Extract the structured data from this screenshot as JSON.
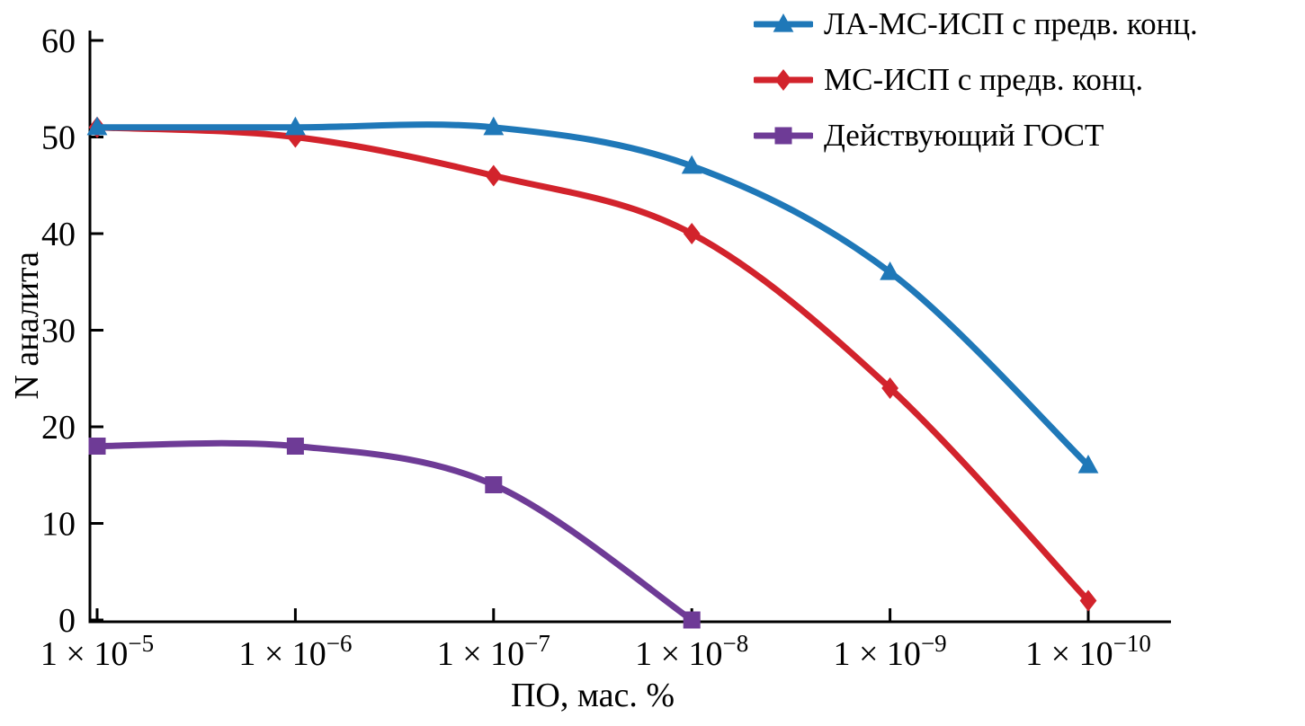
{
  "chart_data": {
    "type": "line",
    "title": "",
    "xlabel": "ПО, мас. %",
    "ylabel": "N аналита",
    "ylim": [
      0,
      60
    ],
    "yticks": [
      0,
      10,
      20,
      30,
      40,
      50,
      60
    ],
    "grid": false,
    "legend_position": "top-right",
    "axis_color": "#000000",
    "categories": [
      {
        "base": "1 × 10",
        "exp": "−5"
      },
      {
        "base": "1 × 10",
        "exp": "−6"
      },
      {
        "base": "1 × 10",
        "exp": "−7"
      },
      {
        "base": "1 × 10",
        "exp": "−8"
      },
      {
        "base": "1 × 10",
        "exp": "−9"
      },
      {
        "base": "1 × 10",
        "exp": "−10"
      }
    ],
    "series": [
      {
        "name": "ЛА-МС-ИСП с предв. конц.",
        "marker": "triangle",
        "color": "#1f78b8",
        "values": [
          51,
          51,
          51,
          47,
          36,
          16
        ]
      },
      {
        "name": "МС-ИСП с предв. конц.",
        "marker": "diamond",
        "color": "#d2232c",
        "values": [
          51,
          50,
          46,
          40,
          24,
          2
        ]
      },
      {
        "name": "Действующий ГОСТ",
        "marker": "square",
        "color": "#6e3b96",
        "values": [
          18,
          18,
          14,
          0
        ]
      }
    ]
  }
}
